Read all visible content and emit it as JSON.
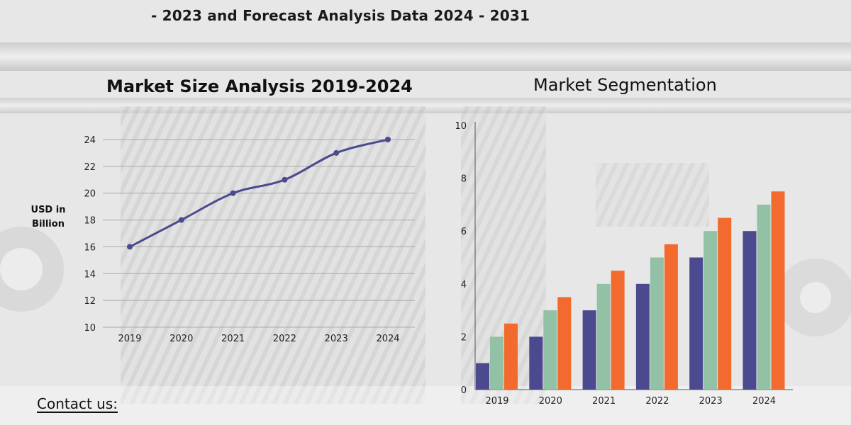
{
  "headline": "- 2023 and Forecast Analysis Data 2024 - 2031",
  "contact_label": "Contact us:",
  "chart_data": [
    {
      "type": "line",
      "title": "Market Size Analysis 2019-2024",
      "ylabel_lines": [
        "USD in",
        "Billion"
      ],
      "x": [
        "2019",
        "2020",
        "2021",
        "2022",
        "2023",
        "2024"
      ],
      "y": [
        16,
        18,
        20,
        21,
        23,
        24
      ],
      "yticks": [
        10,
        12,
        14,
        16,
        18,
        20,
        22,
        24
      ],
      "ylim": [
        10,
        24
      ],
      "grid": true,
      "line_color": "#4b4a8f"
    },
    {
      "type": "bar",
      "title": "Market Segmentation",
      "categories": [
        "2019",
        "2020",
        "2021",
        "2022",
        "2023",
        "2024"
      ],
      "series": [
        {
          "values": [
            1,
            2,
            3,
            4,
            5,
            6
          ],
          "color": "#4b4a8f"
        },
        {
          "values": [
            2,
            3,
            4,
            5,
            6,
            7
          ],
          "color": "#92c1a6"
        },
        {
          "values": [
            2.5,
            3.5,
            4.5,
            5.5,
            6.5,
            7.5
          ],
          "color": "#f26a2e"
        }
      ],
      "yticks": [
        0,
        2,
        4,
        6,
        8,
        10
      ],
      "ylim": [
        0,
        10
      ],
      "grid": false
    }
  ]
}
